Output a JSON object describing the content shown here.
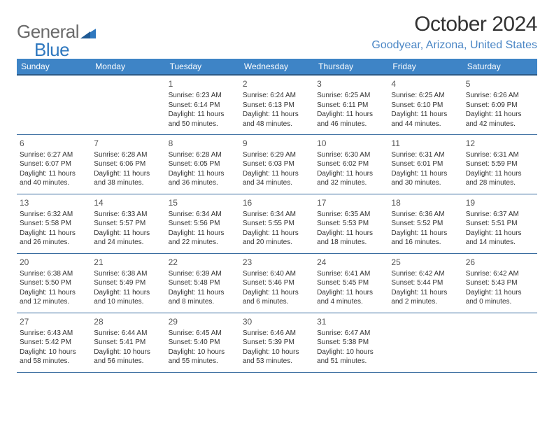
{
  "logo": {
    "text1": "General",
    "text2": "Blue"
  },
  "title": "October 2024",
  "location": "Goodyear, Arizona, United States",
  "colors": {
    "header_bg": "#3e84c6",
    "header_border": "#2b5a87",
    "cell_border": "#3a6da0",
    "location_color": "#4a86c5",
    "logo_gray": "#6b6b6b",
    "logo_blue": "#2f78bf"
  },
  "weekdays": [
    "Sunday",
    "Monday",
    "Tuesday",
    "Wednesday",
    "Thursday",
    "Friday",
    "Saturday"
  ],
  "weeks": [
    [
      {
        "day": "",
        "sunrise": "",
        "sunset": "",
        "daylight": ""
      },
      {
        "day": "",
        "sunrise": "",
        "sunset": "",
        "daylight": ""
      },
      {
        "day": "1",
        "sunrise": "Sunrise: 6:23 AM",
        "sunset": "Sunset: 6:14 PM",
        "daylight": "Daylight: 11 hours and 50 minutes."
      },
      {
        "day": "2",
        "sunrise": "Sunrise: 6:24 AM",
        "sunset": "Sunset: 6:13 PM",
        "daylight": "Daylight: 11 hours and 48 minutes."
      },
      {
        "day": "3",
        "sunrise": "Sunrise: 6:25 AM",
        "sunset": "Sunset: 6:11 PM",
        "daylight": "Daylight: 11 hours and 46 minutes."
      },
      {
        "day": "4",
        "sunrise": "Sunrise: 6:25 AM",
        "sunset": "Sunset: 6:10 PM",
        "daylight": "Daylight: 11 hours and 44 minutes."
      },
      {
        "day": "5",
        "sunrise": "Sunrise: 6:26 AM",
        "sunset": "Sunset: 6:09 PM",
        "daylight": "Daylight: 11 hours and 42 minutes."
      }
    ],
    [
      {
        "day": "6",
        "sunrise": "Sunrise: 6:27 AM",
        "sunset": "Sunset: 6:07 PM",
        "daylight": "Daylight: 11 hours and 40 minutes."
      },
      {
        "day": "7",
        "sunrise": "Sunrise: 6:28 AM",
        "sunset": "Sunset: 6:06 PM",
        "daylight": "Daylight: 11 hours and 38 minutes."
      },
      {
        "day": "8",
        "sunrise": "Sunrise: 6:28 AM",
        "sunset": "Sunset: 6:05 PM",
        "daylight": "Daylight: 11 hours and 36 minutes."
      },
      {
        "day": "9",
        "sunrise": "Sunrise: 6:29 AM",
        "sunset": "Sunset: 6:03 PM",
        "daylight": "Daylight: 11 hours and 34 minutes."
      },
      {
        "day": "10",
        "sunrise": "Sunrise: 6:30 AM",
        "sunset": "Sunset: 6:02 PM",
        "daylight": "Daylight: 11 hours and 32 minutes."
      },
      {
        "day": "11",
        "sunrise": "Sunrise: 6:31 AM",
        "sunset": "Sunset: 6:01 PM",
        "daylight": "Daylight: 11 hours and 30 minutes."
      },
      {
        "day": "12",
        "sunrise": "Sunrise: 6:31 AM",
        "sunset": "Sunset: 5:59 PM",
        "daylight": "Daylight: 11 hours and 28 minutes."
      }
    ],
    [
      {
        "day": "13",
        "sunrise": "Sunrise: 6:32 AM",
        "sunset": "Sunset: 5:58 PM",
        "daylight": "Daylight: 11 hours and 26 minutes."
      },
      {
        "day": "14",
        "sunrise": "Sunrise: 6:33 AM",
        "sunset": "Sunset: 5:57 PM",
        "daylight": "Daylight: 11 hours and 24 minutes."
      },
      {
        "day": "15",
        "sunrise": "Sunrise: 6:34 AM",
        "sunset": "Sunset: 5:56 PM",
        "daylight": "Daylight: 11 hours and 22 minutes."
      },
      {
        "day": "16",
        "sunrise": "Sunrise: 6:34 AM",
        "sunset": "Sunset: 5:55 PM",
        "daylight": "Daylight: 11 hours and 20 minutes."
      },
      {
        "day": "17",
        "sunrise": "Sunrise: 6:35 AM",
        "sunset": "Sunset: 5:53 PM",
        "daylight": "Daylight: 11 hours and 18 minutes."
      },
      {
        "day": "18",
        "sunrise": "Sunrise: 6:36 AM",
        "sunset": "Sunset: 5:52 PM",
        "daylight": "Daylight: 11 hours and 16 minutes."
      },
      {
        "day": "19",
        "sunrise": "Sunrise: 6:37 AM",
        "sunset": "Sunset: 5:51 PM",
        "daylight": "Daylight: 11 hours and 14 minutes."
      }
    ],
    [
      {
        "day": "20",
        "sunrise": "Sunrise: 6:38 AM",
        "sunset": "Sunset: 5:50 PM",
        "daylight": "Daylight: 11 hours and 12 minutes."
      },
      {
        "day": "21",
        "sunrise": "Sunrise: 6:38 AM",
        "sunset": "Sunset: 5:49 PM",
        "daylight": "Daylight: 11 hours and 10 minutes."
      },
      {
        "day": "22",
        "sunrise": "Sunrise: 6:39 AM",
        "sunset": "Sunset: 5:48 PM",
        "daylight": "Daylight: 11 hours and 8 minutes."
      },
      {
        "day": "23",
        "sunrise": "Sunrise: 6:40 AM",
        "sunset": "Sunset: 5:46 PM",
        "daylight": "Daylight: 11 hours and 6 minutes."
      },
      {
        "day": "24",
        "sunrise": "Sunrise: 6:41 AM",
        "sunset": "Sunset: 5:45 PM",
        "daylight": "Daylight: 11 hours and 4 minutes."
      },
      {
        "day": "25",
        "sunrise": "Sunrise: 6:42 AM",
        "sunset": "Sunset: 5:44 PM",
        "daylight": "Daylight: 11 hours and 2 minutes."
      },
      {
        "day": "26",
        "sunrise": "Sunrise: 6:42 AM",
        "sunset": "Sunset: 5:43 PM",
        "daylight": "Daylight: 11 hours and 0 minutes."
      }
    ],
    [
      {
        "day": "27",
        "sunrise": "Sunrise: 6:43 AM",
        "sunset": "Sunset: 5:42 PM",
        "daylight": "Daylight: 10 hours and 58 minutes."
      },
      {
        "day": "28",
        "sunrise": "Sunrise: 6:44 AM",
        "sunset": "Sunset: 5:41 PM",
        "daylight": "Daylight: 10 hours and 56 minutes."
      },
      {
        "day": "29",
        "sunrise": "Sunrise: 6:45 AM",
        "sunset": "Sunset: 5:40 PM",
        "daylight": "Daylight: 10 hours and 55 minutes."
      },
      {
        "day": "30",
        "sunrise": "Sunrise: 6:46 AM",
        "sunset": "Sunset: 5:39 PM",
        "daylight": "Daylight: 10 hours and 53 minutes."
      },
      {
        "day": "31",
        "sunrise": "Sunrise: 6:47 AM",
        "sunset": "Sunset: 5:38 PM",
        "daylight": "Daylight: 10 hours and 51 minutes."
      },
      {
        "day": "",
        "sunrise": "",
        "sunset": "",
        "daylight": ""
      },
      {
        "day": "",
        "sunrise": "",
        "sunset": "",
        "daylight": ""
      }
    ]
  ]
}
